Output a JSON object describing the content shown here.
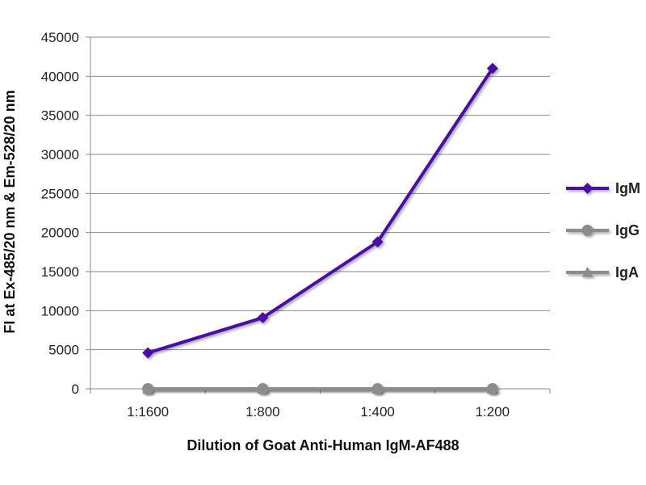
{
  "chart_data": {
    "type": "line",
    "categories": [
      "1:1600",
      "1:800",
      "1:400",
      "1:200"
    ],
    "series": [
      {
        "name": "IgM",
        "values": [
          4600,
          9100,
          18800,
          41000
        ],
        "color": "#4B0FA6",
        "marker": "diamond"
      },
      {
        "name": "IgG",
        "values": [
          0,
          0,
          0,
          0
        ],
        "color": "#8C8C8C",
        "marker": "circle"
      },
      {
        "name": "IgA",
        "values": [
          0,
          0,
          0,
          0
        ],
        "color": "#8C8C8C",
        "marker": "triangle"
      }
    ],
    "xlabel": "Dilution of Goat Anti-Human IgM-AF488",
    "ylabel": "FI at Ex-485/20 nm & Em-528/20 nm",
    "ylim": [
      0,
      45000
    ],
    "yticks": [
      0,
      5000,
      10000,
      15000,
      20000,
      25000,
      30000,
      35000,
      40000,
      45000
    ],
    "grid": true,
    "legend_position": "right"
  }
}
